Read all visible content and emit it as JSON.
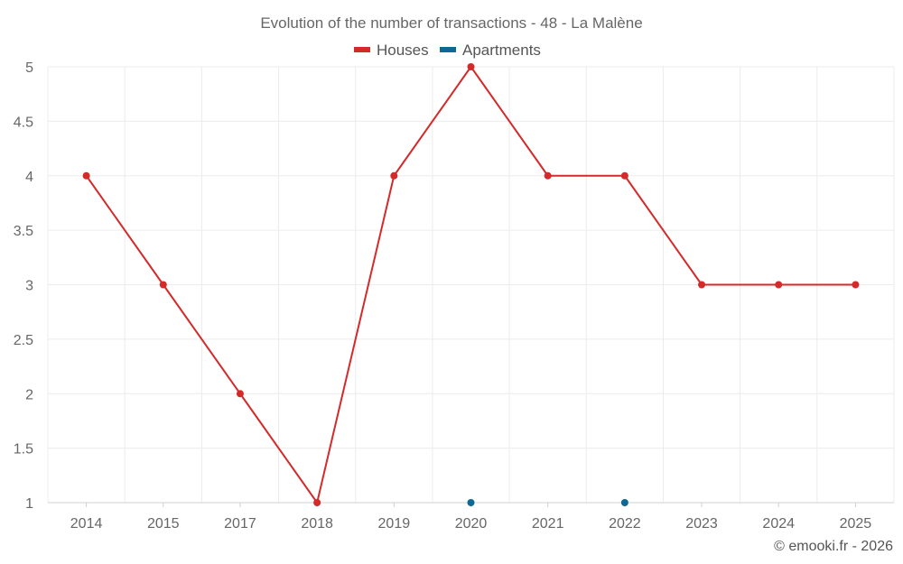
{
  "chart_data": {
    "type": "line",
    "title": "Evolution of the number of transactions - 48 - La Malène",
    "categories": [
      "2014",
      "2015",
      "2017",
      "2018",
      "2019",
      "2020",
      "2021",
      "2022",
      "2023",
      "2024",
      "2025"
    ],
    "series": [
      {
        "name": "Houses",
        "color": "#d42a2a",
        "values": [
          4,
          3,
          2,
          1,
          4,
          5,
          4,
          4,
          3,
          3,
          3
        ]
      },
      {
        "name": "Apartments",
        "color": "#0e6896",
        "values": [
          null,
          null,
          null,
          null,
          null,
          1,
          null,
          1,
          null,
          null,
          null
        ]
      }
    ],
    "ylim": [
      1,
      5
    ],
    "yticks": [
      "1",
      "1.5",
      "2",
      "2.5",
      "3",
      "3.5",
      "4",
      "4.5",
      "5"
    ],
    "grid": true,
    "legend": "top-center"
  },
  "credit": "© emooki.fr - 2026"
}
